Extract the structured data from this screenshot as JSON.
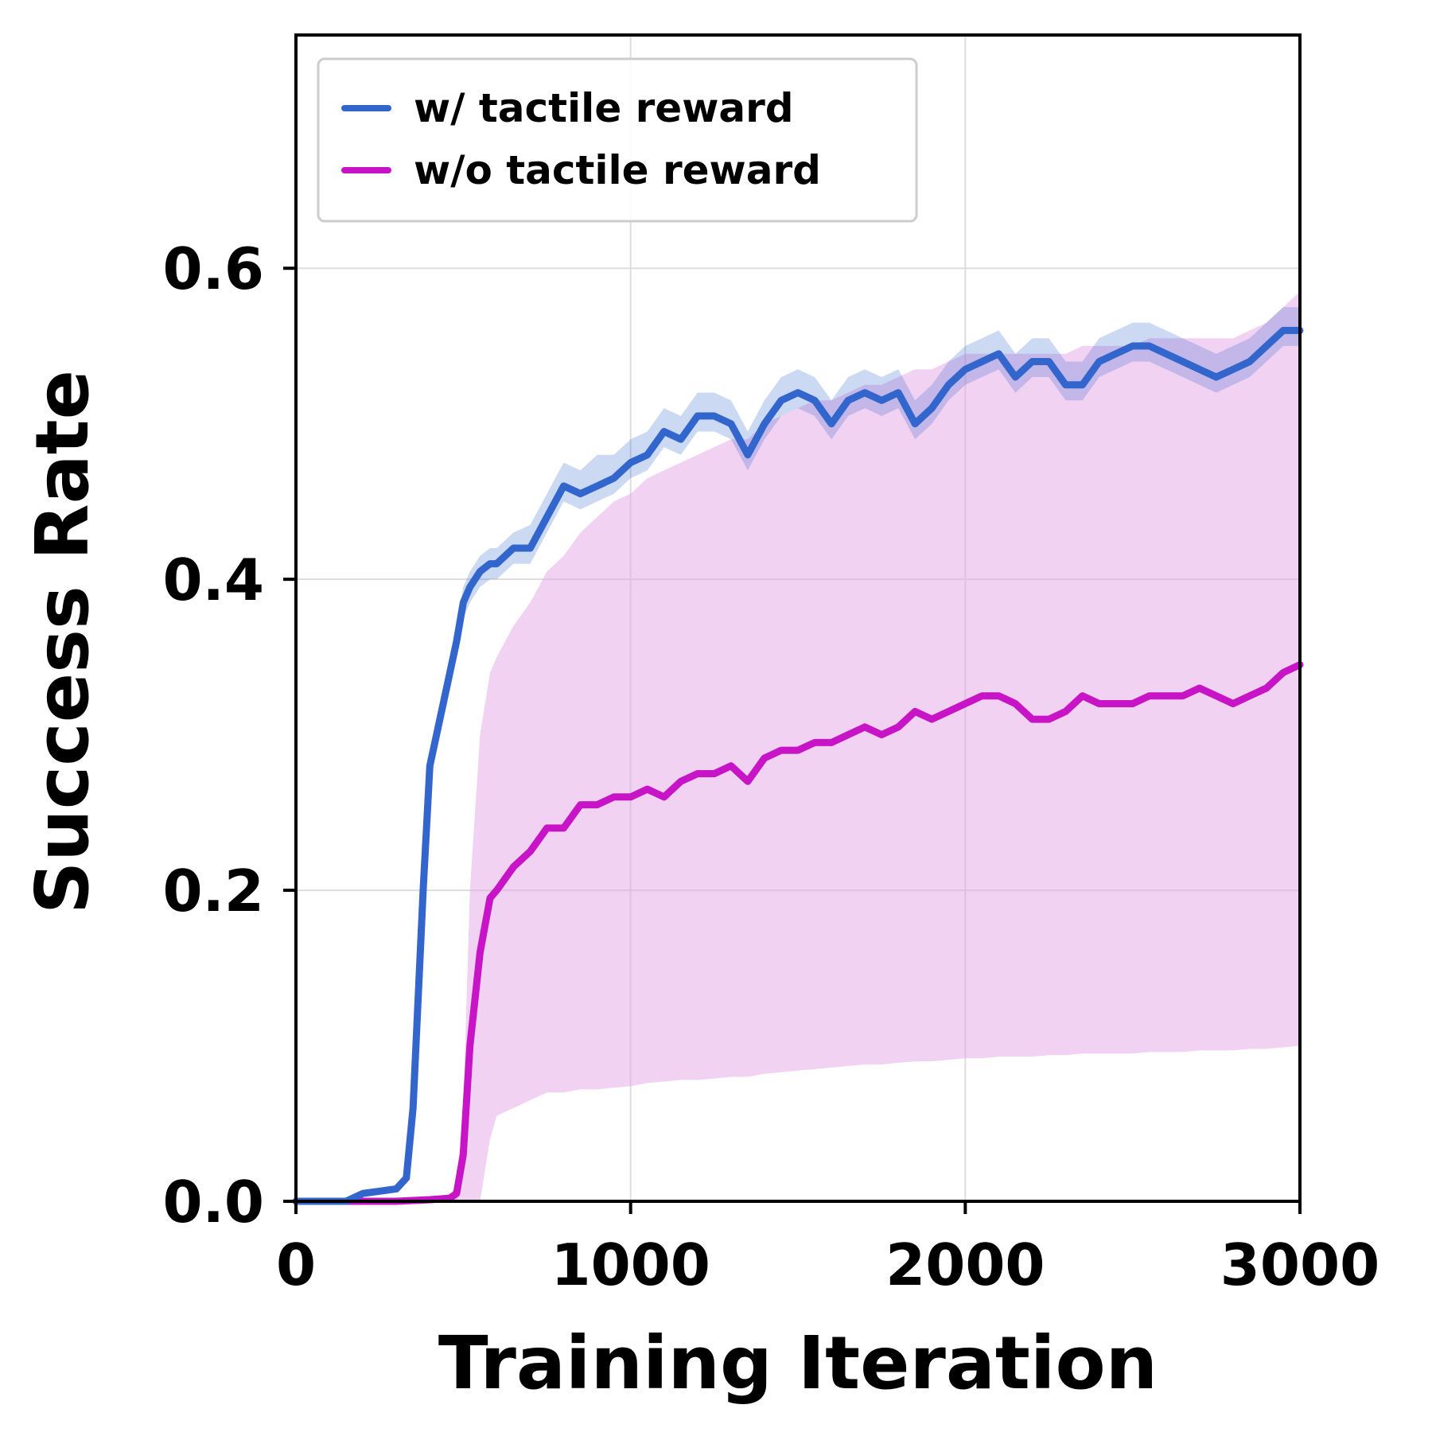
{
  "chart_data": {
    "type": "line",
    "xlabel": "Training Iteration",
    "ylabel": "Success Rate",
    "xlim": [
      0,
      3000
    ],
    "ylim": [
      0,
      0.75
    ],
    "xticks": [
      "0",
      "1000",
      "2000",
      "3000"
    ],
    "yticks": [
      "0.0",
      "0.2",
      "0.4",
      "0.6"
    ],
    "grid": true,
    "legend_position": "top-left",
    "series": [
      {
        "name": "w/ tactile reward",
        "color": "#3366cc",
        "band_color": "#3366cc",
        "x": [
          0,
          150,
          200,
          300,
          330,
          350,
          380,
          400,
          430,
          460,
          480,
          500,
          520,
          550,
          580,
          600,
          650,
          700,
          750,
          800,
          850,
          900,
          950,
          1000,
          1050,
          1100,
          1150,
          1200,
          1250,
          1300,
          1350,
          1400,
          1450,
          1500,
          1550,
          1600,
          1650,
          1700,
          1750,
          1800,
          1850,
          1900,
          1950,
          2000,
          2050,
          2100,
          2150,
          2200,
          2250,
          2300,
          2350,
          2400,
          2450,
          2500,
          2550,
          2600,
          2650,
          2700,
          2750,
          2800,
          2850,
          2900,
          2950,
          3000
        ],
        "values": [
          0.0,
          0.0,
          0.005,
          0.008,
          0.015,
          0.06,
          0.2,
          0.28,
          0.31,
          0.34,
          0.36,
          0.385,
          0.395,
          0.405,
          0.41,
          0.41,
          0.42,
          0.42,
          0.44,
          0.46,
          0.455,
          0.46,
          0.465,
          0.475,
          0.48,
          0.495,
          0.49,
          0.505,
          0.505,
          0.5,
          0.48,
          0.5,
          0.515,
          0.52,
          0.515,
          0.5,
          0.515,
          0.52,
          0.515,
          0.52,
          0.5,
          0.51,
          0.525,
          0.535,
          0.54,
          0.545,
          0.53,
          0.54,
          0.54,
          0.525,
          0.525,
          0.54,
          0.545,
          0.55,
          0.55,
          0.545,
          0.54,
          0.535,
          0.53,
          0.535,
          0.54,
          0.55,
          0.56,
          0.56
        ],
        "band_low": [
          0.0,
          0.0,
          0.004,
          0.006,
          0.012,
          0.05,
          0.18,
          0.27,
          0.3,
          0.33,
          0.35,
          0.375,
          0.385,
          0.395,
          0.4,
          0.4,
          0.41,
          0.41,
          0.43,
          0.45,
          0.445,
          0.45,
          0.455,
          0.465,
          0.47,
          0.485,
          0.48,
          0.495,
          0.495,
          0.49,
          0.47,
          0.49,
          0.505,
          0.51,
          0.505,
          0.49,
          0.505,
          0.51,
          0.505,
          0.51,
          0.49,
          0.5,
          0.515,
          0.525,
          0.53,
          0.535,
          0.52,
          0.53,
          0.53,
          0.515,
          0.515,
          0.53,
          0.535,
          0.54,
          0.54,
          0.535,
          0.53,
          0.525,
          0.52,
          0.525,
          0.53,
          0.54,
          0.55,
          0.55
        ],
        "band_high": [
          0.0,
          0.0,
          0.006,
          0.01,
          0.018,
          0.07,
          0.22,
          0.29,
          0.32,
          0.35,
          0.37,
          0.395,
          0.405,
          0.415,
          0.42,
          0.42,
          0.43,
          0.435,
          0.455,
          0.475,
          0.47,
          0.48,
          0.48,
          0.49,
          0.495,
          0.51,
          0.505,
          0.52,
          0.52,
          0.515,
          0.495,
          0.515,
          0.53,
          0.535,
          0.53,
          0.515,
          0.53,
          0.535,
          0.53,
          0.535,
          0.515,
          0.525,
          0.54,
          0.55,
          0.555,
          0.56,
          0.545,
          0.555,
          0.555,
          0.54,
          0.54,
          0.555,
          0.56,
          0.565,
          0.565,
          0.56,
          0.555,
          0.55,
          0.545,
          0.55,
          0.555,
          0.565,
          0.575,
          0.575
        ]
      },
      {
        "name": "w/o tactile reward",
        "color": "#c614c6",
        "band_color": "#e6a5e6",
        "x": [
          0,
          150,
          200,
          300,
          400,
          460,
          480,
          500,
          520,
          550,
          580,
          600,
          650,
          700,
          750,
          800,
          850,
          900,
          950,
          1000,
          1050,
          1100,
          1150,
          1200,
          1250,
          1300,
          1350,
          1400,
          1450,
          1500,
          1550,
          1600,
          1650,
          1700,
          1750,
          1800,
          1850,
          1900,
          1950,
          2000,
          2050,
          2100,
          2150,
          2200,
          2250,
          2300,
          2350,
          2400,
          2450,
          2500,
          2550,
          2600,
          2650,
          2700,
          2750,
          2800,
          2850,
          2900,
          2950,
          3000
        ],
        "values": [
          0.0,
          0.0,
          0.0,
          0.0,
          0.001,
          0.002,
          0.005,
          0.03,
          0.1,
          0.16,
          0.195,
          0.2,
          0.215,
          0.225,
          0.24,
          0.24,
          0.255,
          0.255,
          0.26,
          0.26,
          0.265,
          0.26,
          0.27,
          0.275,
          0.275,
          0.28,
          0.27,
          0.285,
          0.29,
          0.29,
          0.295,
          0.295,
          0.3,
          0.305,
          0.3,
          0.305,
          0.315,
          0.31,
          0.315,
          0.32,
          0.325,
          0.325,
          0.32,
          0.31,
          0.31,
          0.315,
          0.325,
          0.32,
          0.32,
          0.32,
          0.325,
          0.325,
          0.325,
          0.33,
          0.325,
          0.32,
          0.325,
          0.33,
          0.34,
          0.345
        ],
        "band_low": [
          0.0,
          0.0,
          0.0,
          0.0,
          0.0,
          0.0,
          0.0,
          0.0,
          0.0,
          0.0,
          0.04,
          0.055,
          0.06,
          0.065,
          0.07,
          0.07,
          0.072,
          0.072,
          0.073,
          0.074,
          0.076,
          0.077,
          0.078,
          0.078,
          0.079,
          0.08,
          0.08,
          0.082,
          0.083,
          0.084,
          0.085,
          0.086,
          0.087,
          0.088,
          0.088,
          0.089,
          0.09,
          0.09,
          0.091,
          0.092,
          0.092,
          0.093,
          0.093,
          0.093,
          0.094,
          0.094,
          0.095,
          0.095,
          0.095,
          0.095,
          0.096,
          0.096,
          0.096,
          0.097,
          0.097,
          0.097,
          0.098,
          0.098,
          0.099,
          0.1
        ],
        "band_high": [
          0.0,
          0.0,
          0.0,
          0.0,
          0.002,
          0.004,
          0.01,
          0.06,
          0.2,
          0.3,
          0.34,
          0.35,
          0.37,
          0.385,
          0.405,
          0.415,
          0.43,
          0.44,
          0.45,
          0.455,
          0.465,
          0.47,
          0.475,
          0.48,
          0.485,
          0.49,
          0.49,
          0.5,
          0.505,
          0.51,
          0.515,
          0.515,
          0.52,
          0.525,
          0.525,
          0.53,
          0.535,
          0.535,
          0.54,
          0.545,
          0.545,
          0.545,
          0.545,
          0.545,
          0.545,
          0.545,
          0.55,
          0.55,
          0.55,
          0.55,
          0.555,
          0.555,
          0.555,
          0.555,
          0.555,
          0.555,
          0.56,
          0.565,
          0.575,
          0.585
        ]
      }
    ]
  }
}
